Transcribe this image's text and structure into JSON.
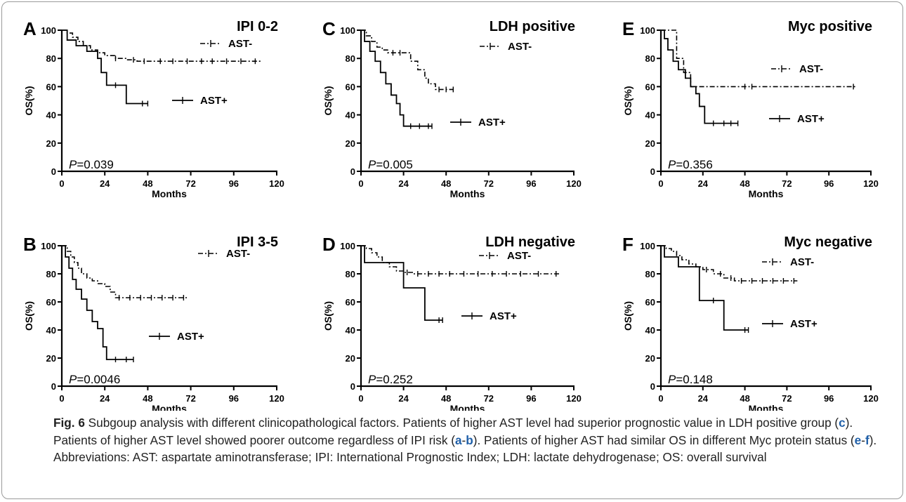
{
  "caption": {
    "fig_label": "Fig. 6",
    "parts": [
      {
        "t": " Subgoup analysis with different clinicopathological factors. Patients of higher AST level had superior prognostic value in LDH positive group ("
      },
      {
        "t": "c",
        "b": 1
      },
      {
        "t": "). Patients of higher AST level showed poorer outcome regardless of IPI risk ("
      },
      {
        "t": "a",
        "b": 1
      },
      {
        "t": "-"
      },
      {
        "t": "b",
        "b": 1
      },
      {
        "t": "). Patients of higher AST had similar OS in different Myc protein status ("
      },
      {
        "t": "e",
        "b": 1
      },
      {
        "t": "-"
      },
      {
        "t": "f",
        "b": 1
      },
      {
        "t": "). Abbreviations: AST: aspartate aminotransferase; IPI: International Prognostic Index; LDH: lactate dehydrogenase; OS: overall survival"
      }
    ]
  },
  "chart_data": [
    {
      "type": "line",
      "panel": "A",
      "title": "IPI 0-2",
      "xlabel": "Months",
      "ylabel": "OS(%)",
      "xlim": [
        0,
        120
      ],
      "ylim": [
        0,
        100
      ],
      "xticks": [
        "0",
        "24",
        "48",
        "72",
        "96",
        "120"
      ],
      "yticks": [
        "0",
        "20",
        "40",
        "60",
        "80",
        "100"
      ],
      "pvalue": {
        "prefix": "P",
        "value": "=0.039"
      },
      "series": [
        {
          "name": "AST-",
          "dash": "dashdot",
          "x": [
            0,
            3,
            6,
            9,
            12,
            16,
            20,
            24,
            30,
            36,
            42,
            48,
            60,
            72,
            84,
            96,
            112
          ],
          "y": [
            100,
            98,
            95,
            92,
            89,
            86,
            84,
            82,
            80,
            79,
            78,
            78,
            78,
            78,
            78,
            78,
            78
          ],
          "censor": [
            30,
            40,
            46,
            55,
            62,
            70,
            78,
            84,
            92,
            100,
            108
          ]
        },
        {
          "name": "AST+",
          "dash": "solid",
          "x": [
            0,
            3,
            8,
            14,
            20,
            22,
            25,
            36,
            48
          ],
          "y": [
            100,
            93,
            89,
            85,
            80,
            70,
            61,
            48,
            48
          ],
          "censor": [
            30,
            45,
            48
          ]
        }
      ]
    },
    {
      "type": "line",
      "panel": "B",
      "title": "IPI 3-5",
      "xlabel": "Months",
      "ylabel": "OS(%)",
      "xlim": [
        0,
        120
      ],
      "ylim": [
        0,
        100
      ],
      "xticks": [
        "0",
        "24",
        "48",
        "72",
        "96",
        "120"
      ],
      "yticks": [
        "0",
        "20",
        "40",
        "60",
        "80",
        "100"
      ],
      "pvalue": {
        "prefix": "P",
        "value": "=0.0046"
      },
      "series": [
        {
          "name": "AST-",
          "dash": "dashdot",
          "x": [
            0,
            3,
            5,
            7,
            9,
            11,
            14,
            17,
            20,
            24,
            27,
            30,
            36,
            48,
            60,
            70
          ],
          "y": [
            100,
            96,
            92,
            88,
            84,
            80,
            77,
            75,
            73,
            71,
            67,
            63,
            63,
            63,
            63,
            63
          ],
          "censor": [
            32,
            38,
            44,
            50,
            56,
            62,
            68
          ]
        },
        {
          "name": "AST+",
          "dash": "solid",
          "x": [
            0,
            2,
            4,
            6,
            8,
            11,
            14,
            17,
            20,
            23,
            25,
            40
          ],
          "y": [
            100,
            92,
            84,
            76,
            69,
            62,
            54,
            46,
            41,
            28,
            19,
            19
          ],
          "censor": [
            30,
            36,
            40
          ]
        }
      ]
    },
    {
      "type": "line",
      "panel": "C",
      "title": "LDH positive",
      "xlabel": "Months",
      "ylabel": "OS(%)",
      "xlim": [
        0,
        120
      ],
      "ylim": [
        0,
        100
      ],
      "xticks": [
        "0",
        "24",
        "48",
        "72",
        "96",
        "120"
      ],
      "yticks": [
        "0",
        "20",
        "40",
        "60",
        "80",
        "100"
      ],
      "pvalue": {
        "prefix": "P",
        "value": "=0.005"
      },
      "series": [
        {
          "name": "AST-",
          "dash": "dashdot",
          "x": [
            0,
            3,
            6,
            9,
            12,
            15,
            24,
            28,
            32,
            36,
            38,
            42,
            52
          ],
          "y": [
            100,
            96,
            92,
            88,
            86,
            84,
            84,
            78,
            72,
            66,
            62,
            58,
            58
          ],
          "censor": [
            18,
            22,
            44,
            48,
            52
          ]
        },
        {
          "name": "AST+",
          "dash": "solid",
          "x": [
            0,
            2,
            5,
            8,
            11,
            14,
            17,
            20,
            22,
            24,
            40
          ],
          "y": [
            100,
            92,
            85,
            78,
            70,
            62,
            54,
            48,
            40,
            32,
            32
          ],
          "censor": [
            28,
            33,
            38,
            40
          ]
        }
      ]
    },
    {
      "type": "line",
      "panel": "D",
      "title": "LDH negative",
      "xlabel": "Months",
      "ylabel": "OS(%)",
      "xlim": [
        0,
        120
      ],
      "ylim": [
        0,
        100
      ],
      "xticks": [
        "0",
        "24",
        "48",
        "72",
        "96",
        "120"
      ],
      "yticks": [
        "0",
        "20",
        "40",
        "60",
        "80",
        "100"
      ],
      "pvalue": {
        "prefix": "P",
        "value": "=0.252"
      },
      "series": [
        {
          "name": "AST-",
          "dash": "dashdot",
          "x": [
            0,
            3,
            6,
            9,
            12,
            16,
            20,
            24,
            30,
            48,
            72,
            96,
            112
          ],
          "y": [
            100,
            98,
            95,
            92,
            88,
            85,
            82,
            81,
            80,
            80,
            80,
            80,
            80
          ],
          "censor": [
            26,
            32,
            38,
            44,
            50,
            58,
            66,
            74,
            82,
            90,
            100,
            110
          ]
        },
        {
          "name": "AST+",
          "dash": "solid",
          "x": [
            0,
            2,
            24,
            36,
            46
          ],
          "y": [
            100,
            88,
            70,
            47,
            47
          ],
          "censor": [
            44,
            46
          ]
        }
      ]
    },
    {
      "type": "line",
      "panel": "E",
      "title": "Myc positive",
      "xlabel": "Months",
      "ylabel": "OS(%)",
      "xlim": [
        0,
        120
      ],
      "ylim": [
        0,
        100
      ],
      "xticks": [
        "0",
        "24",
        "48",
        "72",
        "96",
        "120"
      ],
      "yticks": [
        "0",
        "20",
        "40",
        "60",
        "80",
        "100"
      ],
      "pvalue": {
        "prefix": "P",
        "value": "=0.356"
      },
      "series": [
        {
          "name": "AST-",
          "dash": "dashdot",
          "x": [
            0,
            9,
            13,
            17,
            112
          ],
          "y": [
            100,
            80,
            70,
            60,
            60
          ],
          "censor": [
            48,
            52,
            110
          ]
        },
        {
          "name": "AST+",
          "dash": "solid",
          "x": [
            0,
            2,
            4,
            7,
            10,
            14,
            17,
            20,
            22,
            25,
            44
          ],
          "y": [
            100,
            94,
            86,
            78,
            72,
            66,
            60,
            55,
            46,
            34,
            34
          ],
          "censor": [
            30,
            36,
            40,
            44
          ]
        }
      ]
    },
    {
      "type": "line",
      "panel": "F",
      "title": "Myc negative",
      "xlabel": "Months",
      "ylabel": "OS(%)",
      "xlim": [
        0,
        120
      ],
      "ylim": [
        0,
        100
      ],
      "xticks": [
        "0",
        "24",
        "48",
        "72",
        "96",
        "120"
      ],
      "yticks": [
        "0",
        "20",
        "40",
        "60",
        "80",
        "100"
      ],
      "pvalue": {
        "prefix": "P",
        "value": "=0.148"
      },
      "series": [
        {
          "name": "AST-",
          "dash": "dashdot",
          "x": [
            0,
            3,
            6,
            9,
            12,
            16,
            20,
            24,
            30,
            36,
            42,
            48,
            78
          ],
          "y": [
            100,
            98,
            96,
            93,
            90,
            87,
            85,
            83,
            80,
            77,
            75,
            75,
            75
          ],
          "censor": [
            26,
            34,
            40,
            46,
            52,
            58,
            64,
            70,
            76
          ]
        },
        {
          "name": "AST+",
          "dash": "solid",
          "x": [
            0,
            2,
            10,
            22,
            36,
            50
          ],
          "y": [
            100,
            92,
            85,
            61,
            40,
            40
          ],
          "censor": [
            30,
            48,
            50
          ]
        }
      ]
    }
  ]
}
